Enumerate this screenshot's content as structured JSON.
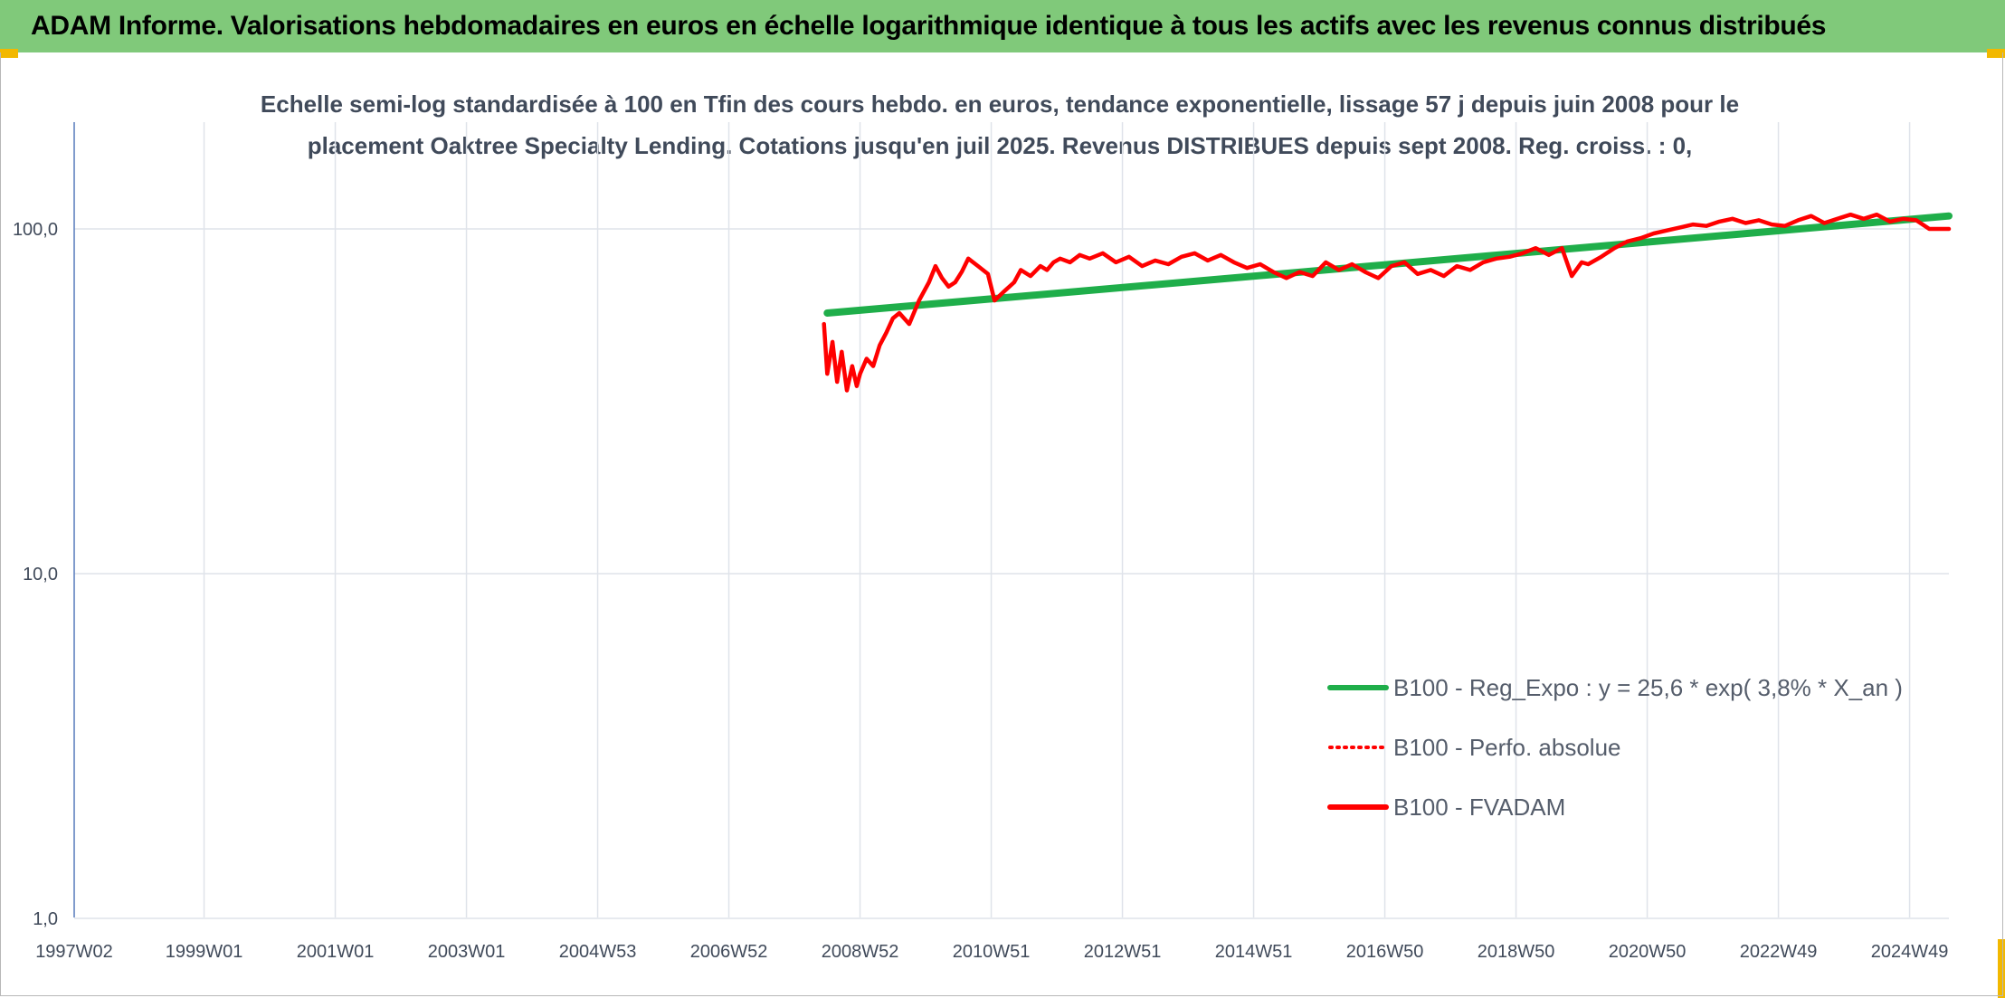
{
  "header": {
    "title": "ADAM Informe. Valorisations hebdomadaires en euros en échelle logarithmique identique à tous les actifs avec les revenus connus distribués"
  },
  "chart_data": {
    "type": "line",
    "title": "Echelle semi-log standardisée à 100 en Tfin des cours hebdo. en euros, tendance exponentielle, lissage 57 j depuis juin 2008 pour le placement Oaktree Specialty Lending. Cotations jusqu'en juil 2025. Revenus DISTRIBUES depuis sept 2008. Reg. croiss. : 0,",
    "y_scale": "log",
    "ylim": [
      1,
      200
    ],
    "x_range": [
      1997.02,
      2025.6
    ],
    "y_ticks": [
      {
        "value": 1,
        "label": "1,0"
      },
      {
        "value": 10,
        "label": "10,0"
      },
      {
        "value": 100,
        "label": "100,0"
      }
    ],
    "x_ticks": [
      {
        "value": 1997.02,
        "label": "1997W02"
      },
      {
        "value": 1999.0,
        "label": "1999W01"
      },
      {
        "value": 2001.0,
        "label": "2001W01"
      },
      {
        "value": 2003.0,
        "label": "2003W01"
      },
      {
        "value": 2005.0,
        "label": "2004W53"
      },
      {
        "value": 2007.0,
        "label": "2006W52"
      },
      {
        "value": 2009.0,
        "label": "2008W52"
      },
      {
        "value": 2011.0,
        "label": "2010W51"
      },
      {
        "value": 2013.0,
        "label": "2012W51"
      },
      {
        "value": 2015.0,
        "label": "2014W51"
      },
      {
        "value": 2017.0,
        "label": "2016W50"
      },
      {
        "value": 2019.0,
        "label": "2018W50"
      },
      {
        "value": 2021.0,
        "label": "2020W50"
      },
      {
        "value": 2023.0,
        "label": "2022W49"
      },
      {
        "value": 2025.0,
        "label": "2024W49"
      }
    ],
    "grid": true,
    "legend_position": "bottom-right",
    "series": [
      {
        "name": "B100 - Reg_Expo : y = 25,6 * exp( 3,8% *  X_an )",
        "color": "#1fae4a",
        "style": "solid",
        "x": [
          2008.5,
          2025.6
        ],
        "y": [
          57,
          109
        ]
      },
      {
        "name": "B100 - Perfo. absolue",
        "color": "#ff0000",
        "style": "dotted",
        "x": [],
        "y": []
      },
      {
        "name": "B100 - FVADAM",
        "color": "#ff0000",
        "style": "solid",
        "x": [
          2008.45,
          2008.5,
          2008.58,
          2008.65,
          2008.72,
          2008.8,
          2008.88,
          2008.95,
          2009.0,
          2009.1,
          2009.2,
          2009.3,
          2009.4,
          2009.5,
          2009.6,
          2009.75,
          2009.9,
          2010.05,
          2010.15,
          2010.25,
          2010.35,
          2010.45,
          2010.55,
          2010.65,
          2010.8,
          2010.95,
          2011.05,
          2011.2,
          2011.35,
          2011.45,
          2011.6,
          2011.75,
          2011.85,
          2011.95,
          2012.05,
          2012.2,
          2012.35,
          2012.5,
          2012.7,
          2012.9,
          2013.1,
          2013.3,
          2013.5,
          2013.7,
          2013.9,
          2014.1,
          2014.3,
          2014.5,
          2014.7,
          2014.9,
          2015.1,
          2015.3,
          2015.5,
          2015.7,
          2015.9,
          2016.1,
          2016.3,
          2016.5,
          2016.7,
          2016.9,
          2017.1,
          2017.3,
          2017.5,
          2017.7,
          2017.9,
          2018.1,
          2018.3,
          2018.5,
          2018.7,
          2018.9,
          2019.1,
          2019.3,
          2019.5,
          2019.7,
          2019.85,
          2020.0,
          2020.1,
          2020.3,
          2020.5,
          2020.7,
          2020.9,
          2021.1,
          2021.3,
          2021.5,
          2021.7,
          2021.9,
          2022.1,
          2022.3,
          2022.5,
          2022.7,
          2022.9,
          2023.1,
          2023.3,
          2023.5,
          2023.7,
          2023.9,
          2024.1,
          2024.3,
          2024.5,
          2024.7,
          2024.9,
          2025.1,
          2025.3,
          2025.6
        ],
        "y": [
          53,
          38,
          47,
          36,
          44,
          34,
          40,
          35,
          38,
          42,
          40,
          46,
          50,
          55,
          57,
          53,
          62,
          70,
          78,
          72,
          68,
          70,
          75,
          82,
          78,
          74,
          62,
          66,
          70,
          76,
          73,
          78,
          76,
          80,
          82,
          80,
          84,
          82,
          85,
          80,
          83,
          78,
          81,
          79,
          83,
          85,
          81,
          84,
          80,
          77,
          79,
          75,
          72,
          75,
          73,
          80,
          76,
          79,
          75,
          72,
          78,
          80,
          74,
          76,
          73,
          78,
          76,
          80,
          82,
          83,
          85,
          88,
          84,
          88,
          73,
          80,
          79,
          83,
          88,
          92,
          94,
          97,
          99,
          101,
          103,
          102,
          105,
          107,
          104,
          106,
          103,
          102,
          106,
          109,
          104,
          107,
          110,
          107,
          110,
          105,
          107,
          106,
          100,
          100
        ]
      }
    ]
  }
}
